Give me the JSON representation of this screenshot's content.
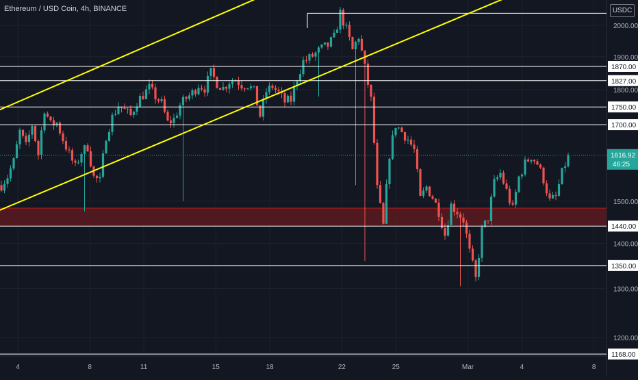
{
  "header": {
    "symbol_title": "Ethereum / USD Coin, 4h, BINANCE",
    "currency": "USDC"
  },
  "colors": {
    "background": "#131722",
    "up_candle": "#26a69a",
    "down_candle": "#ef5350",
    "channel_lines": "#ffff00",
    "level_lines": "#ffffff",
    "support_zone": "#5c1a20",
    "grid": "#1e222d"
  },
  "chart_data": {
    "type": "candlestick",
    "title": "Ethereum / USD Coin, 4h, BINANCE",
    "y_scale": "log",
    "grid": true,
    "x_tick_labels": [
      "4",
      "8",
      "11",
      "15",
      "18",
      "22",
      "25",
      "Mar",
      "4",
      "8"
    ],
    "y_tick_labels": [
      "2000.00",
      "1900.00",
      "1800.00",
      "1500.00",
      "1400.00",
      "1300.00",
      "1200.00"
    ],
    "last_price": {
      "value": 1616.92,
      "label": "1616.92",
      "countdown": "46:25"
    },
    "horizontal_levels": [
      {
        "label": "1870.00",
        "value": 1870
      },
      {
        "label": "1827.00",
        "value": 1827
      },
      {
        "label": "1750.00",
        "value": 1750
      },
      {
        "label": "1700.00",
        "value": 1700
      },
      {
        "label": "1440.00",
        "value": 1440
      },
      {
        "label": "1350.00",
        "value": 1350
      },
      {
        "label": "1168.00",
        "value": 1168
      },
      {
        "label": "",
        "value": 2040
      }
    ],
    "support_zone": {
      "from": 1440,
      "to": 1483
    },
    "channel": [
      {
        "name": "upper",
        "from": {
          "date": "Feb 1",
          "price": 1698
        },
        "to": {
          "date": "Mar 7",
          "price": 2620
        }
      },
      {
        "name": "lower",
        "from": {
          "date": "Feb 1",
          "price": 1442
        },
        "to": {
          "date": "Mar 7",
          "price": 2195
        }
      }
    ],
    "close_path": [
      1540,
      1562,
      1600,
      1680,
      1640,
      1700,
      1620,
      1745,
      1700,
      1705,
      1660,
      1620,
      1585,
      1625,
      1640,
      1560,
      1550,
      1670,
      1720,
      1755,
      1740,
      1725,
      1765,
      1785,
      1805,
      1780,
      1760,
      1705,
      1715,
      1755,
      1775,
      1790,
      1815,
      1805,
      1850,
      1820,
      1805,
      1825,
      1830,
      1815,
      1815,
      1795,
      1725,
      1795,
      1810,
      1790,
      1765,
      1770,
      1835,
      1885,
      1895,
      1910,
      1925,
      1935,
      1960,
      2040,
      1985,
      1920,
      1965,
      1865,
      1770,
      1530,
      1440,
      1620,
      1700,
      1680,
      1660,
      1630,
      1505,
      1535,
      1510,
      1475,
      1420,
      1490,
      1475,
      1455,
      1380,
      1320,
      1430,
      1460,
      1545,
      1570,
      1525,
      1480,
      1560,
      1595,
      1615,
      1595,
      1555,
      1500,
      1510,
      1570,
      1617
    ]
  }
}
